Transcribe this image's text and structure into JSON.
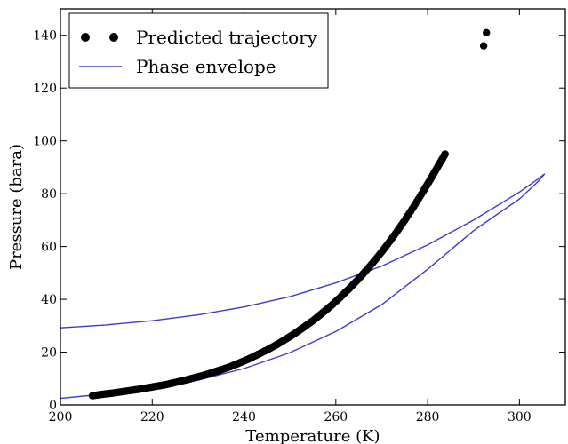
{
  "chart_data": {
    "type": "scatter",
    "title": "",
    "xlabel": "Temperature (K)",
    "ylabel": "Pressure (bara)",
    "xlim": [
      200,
      310
    ],
    "ylim": [
      0,
      150
    ],
    "xticks": [
      200,
      220,
      240,
      260,
      280,
      300
    ],
    "yticks": [
      0,
      20,
      40,
      60,
      80,
      100,
      120,
      140
    ],
    "grid": false,
    "legend_position": "top-left",
    "legend": [
      "Predicted trajectory",
      "Phase envelope"
    ],
    "colors": {
      "trajectory": "#000000",
      "envelope": "#3b3bcf",
      "axes": "#000000"
    },
    "series": [
      {
        "name": "Predicted trajectory",
        "kind": "scatter",
        "x": [
          207,
          209,
          211,
          213,
          215,
          217,
          219,
          221,
          223,
          225,
          227,
          229,
          231,
          233,
          235,
          237,
          239,
          241,
          243,
          245,
          247,
          249,
          251,
          253,
          255,
          257,
          259,
          261,
          263,
          265,
          267,
          269,
          271,
          273,
          275,
          277,
          279,
          280,
          281,
          282,
          283,
          283.8,
          292.2,
          292.8
        ],
        "y": [
          3.5,
          4.0,
          4.4,
          4.9,
          5.4,
          5.9,
          6.5,
          7.1,
          7.7,
          8.5,
          9.3,
          10.2,
          11.1,
          12.2,
          13.3,
          14.5,
          15.9,
          17.4,
          19.1,
          20.8,
          22.7,
          24.8,
          27.0,
          29.4,
          31.9,
          34.7,
          37.6,
          40.8,
          44.2,
          47.8,
          51.7,
          55.8,
          60.2,
          64.9,
          69.9,
          75.2,
          80.8,
          83.7,
          86.6,
          89.6,
          92.6,
          95.0,
          136,
          141
        ]
      },
      {
        "name": "Phase envelope",
        "kind": "line",
        "upper": {
          "x": [
            200,
            210,
            220,
            230,
            240,
            250,
            260,
            270,
            280,
            290,
            300,
            304,
            305.5
          ],
          "y": [
            29.2,
            30.3,
            31.9,
            34.1,
            37.1,
            41.0,
            46.2,
            52.6,
            60.6,
            70.0,
            80.6,
            85.5,
            87.5
          ]
        },
        "lower": {
          "x": [
            200,
            210,
            220,
            230,
            240,
            250,
            260,
            270,
            280,
            290,
            300,
            304,
            305.5
          ],
          "y": [
            2.5,
            4.2,
            6.3,
            9.4,
            13.8,
            19.8,
            27.8,
            38.0,
            51.4,
            66.0,
            78.0,
            84.5,
            87.5
          ]
        }
      }
    ]
  }
}
